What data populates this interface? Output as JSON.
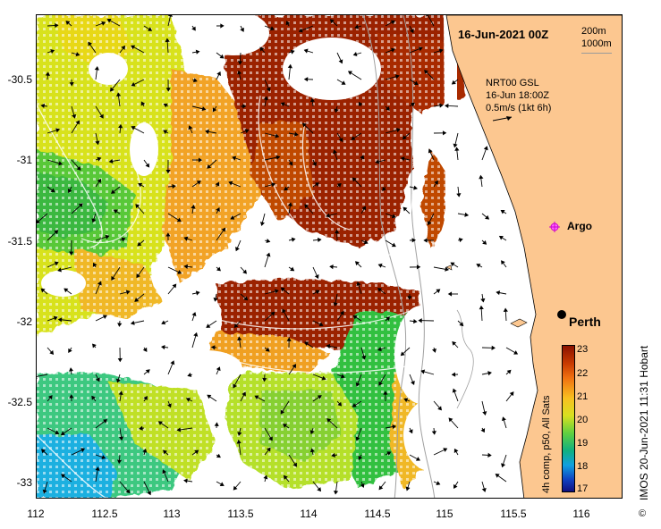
{
  "title": "16-Jun-2021 00Z",
  "depth_contours": [
    "200m",
    "1000m"
  ],
  "current_info": {
    "line1": "NRT00 GSL",
    "line2": "16-Jun 18:00Z",
    "line3": "0.5m/s (1kt 6h)"
  },
  "places": {
    "argo": "Argo",
    "perth": "Perth"
  },
  "axes": {
    "x_ticks": [
      "112",
      "112.5",
      "113",
      "113.5",
      "114",
      "114.5",
      "115",
      "115.5",
      "116"
    ],
    "y_ticks": [
      "-30.5",
      "-31",
      "-31.5",
      "-32",
      "-32.5",
      "-33"
    ]
  },
  "colorbar": {
    "label": "4h comp, p50, All Sats",
    "ticks": [
      "23",
      "22",
      "21",
      "20",
      "19",
      "18",
      "17"
    ]
  },
  "credit": "IMOS 20-Jun-2021 11:31 Hobart",
  "copyright_symbol": "©",
  "colors": {
    "land": "#fcc790",
    "sst_hot": "#9b2100",
    "sst_warm": "#f0a020",
    "sst_mid": "#b5e02a",
    "sst_cool": "#30c040",
    "sst_cold": "#1ab0e0"
  }
}
